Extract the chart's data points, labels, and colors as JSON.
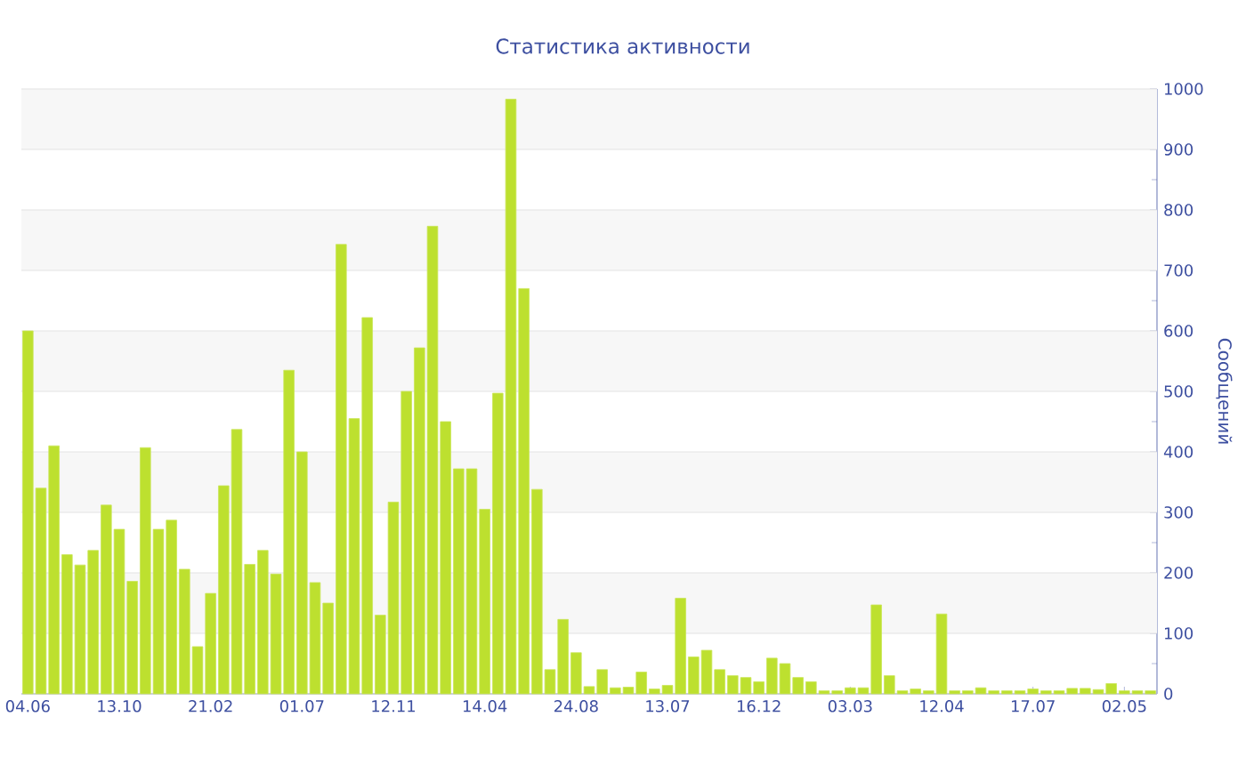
{
  "chart_data": {
    "type": "bar",
    "title": "Статистика активности",
    "ylabel": "Сообщений",
    "categories": [
      "04.06",
      null,
      null,
      null,
      null,
      null,
      null,
      "13.10",
      null,
      null,
      null,
      null,
      null,
      null,
      "21.02",
      null,
      null,
      null,
      null,
      null,
      null,
      "01.07",
      null,
      null,
      null,
      null,
      null,
      null,
      "12.11",
      null,
      null,
      null,
      null,
      null,
      null,
      "14.04",
      null,
      null,
      null,
      null,
      null,
      null,
      "24.08",
      null,
      null,
      null,
      null,
      null,
      null,
      "13.07",
      null,
      null,
      null,
      null,
      null,
      null,
      "16.12",
      null,
      null,
      null,
      null,
      null,
      null,
      "03.03",
      null,
      null,
      null,
      null,
      null,
      null,
      "12.04",
      null,
      null,
      null,
      null,
      null,
      null,
      "17.07",
      null,
      null,
      null,
      null,
      null,
      null,
      "02.05",
      null,
      null
    ],
    "values": [
      600,
      340,
      410,
      230,
      213,
      237,
      312,
      272,
      186,
      407,
      272,
      287,
      206,
      78,
      166,
      344,
      437,
      214,
      237,
      198,
      535,
      400,
      184,
      150,
      743,
      455,
      622,
      130,
      317,
      500,
      572,
      773,
      450,
      372,
      372,
      305,
      497,
      983,
      670,
      338,
      40,
      123,
      68,
      12,
      40,
      10,
      11,
      36,
      8,
      14,
      158,
      61,
      72,
      40,
      30,
      27,
      20,
      59,
      50,
      27,
      20,
      5,
      5,
      10,
      10,
      147,
      30,
      5,
      8,
      5,
      132,
      5,
      5,
      10,
      5,
      5,
      5,
      8,
      5,
      5,
      9,
      9,
      7,
      17,
      5,
      5,
      5
    ],
    "color": "#bde02f",
    "ylim": [
      0,
      1000
    ],
    "yticks": [
      0,
      100,
      200,
      300,
      400,
      500,
      600,
      700,
      800,
      900,
      1000
    ],
    "grid": "y"
  }
}
